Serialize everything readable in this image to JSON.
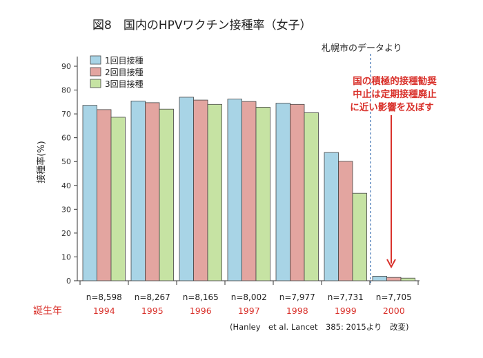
{
  "chart_data": {
    "type": "bar",
    "title": "図8　国内のHPVワクチン接種率（女子）",
    "ylabel": "接種率(%)",
    "xlabel": "",
    "ylim": [
      0,
      90
    ],
    "yticks": [
      0,
      10,
      20,
      30,
      40,
      50,
      60,
      70,
      80,
      90
    ],
    "grid": false,
    "legend_position": "top-left",
    "categories": [
      "1994",
      "1995",
      "1996",
      "1997",
      "1998",
      "1999",
      "2000"
    ],
    "sample_sizes": [
      "n=8,598",
      "n=8,267",
      "n=8,165",
      "n=8,002",
      "n=7,977",
      "n=7,731",
      "n=7,705"
    ],
    "series": [
      {
        "name": "1回目接種",
        "color": "#a8d4e6",
        "values": [
          73.6,
          75.4,
          77.0,
          76.2,
          74.5,
          53.8,
          1.9
        ]
      },
      {
        "name": "2回目接種",
        "color": "#e3a5a0",
        "values": [
          71.8,
          74.7,
          75.8,
          75.2,
          74.0,
          50.1,
          1.4
        ]
      },
      {
        "name": "3回目接種",
        "color": "#c6e3a3",
        "values": [
          68.6,
          72.0,
          74.0,
          72.8,
          70.5,
          36.7,
          1.1
        ]
      }
    ],
    "row_label": "誕生年",
    "source_note": "札幌市のデータより",
    "annotation": [
      "国の積極的接種勧奨",
      "中止は定期接種廃止",
      "に近い影響を及ぼす"
    ],
    "citation": "(Hanley　et al. Lancet　385: 2015より　改変)",
    "accent_color": "#d9312b",
    "divider_color": "#3a6fb0"
  }
}
